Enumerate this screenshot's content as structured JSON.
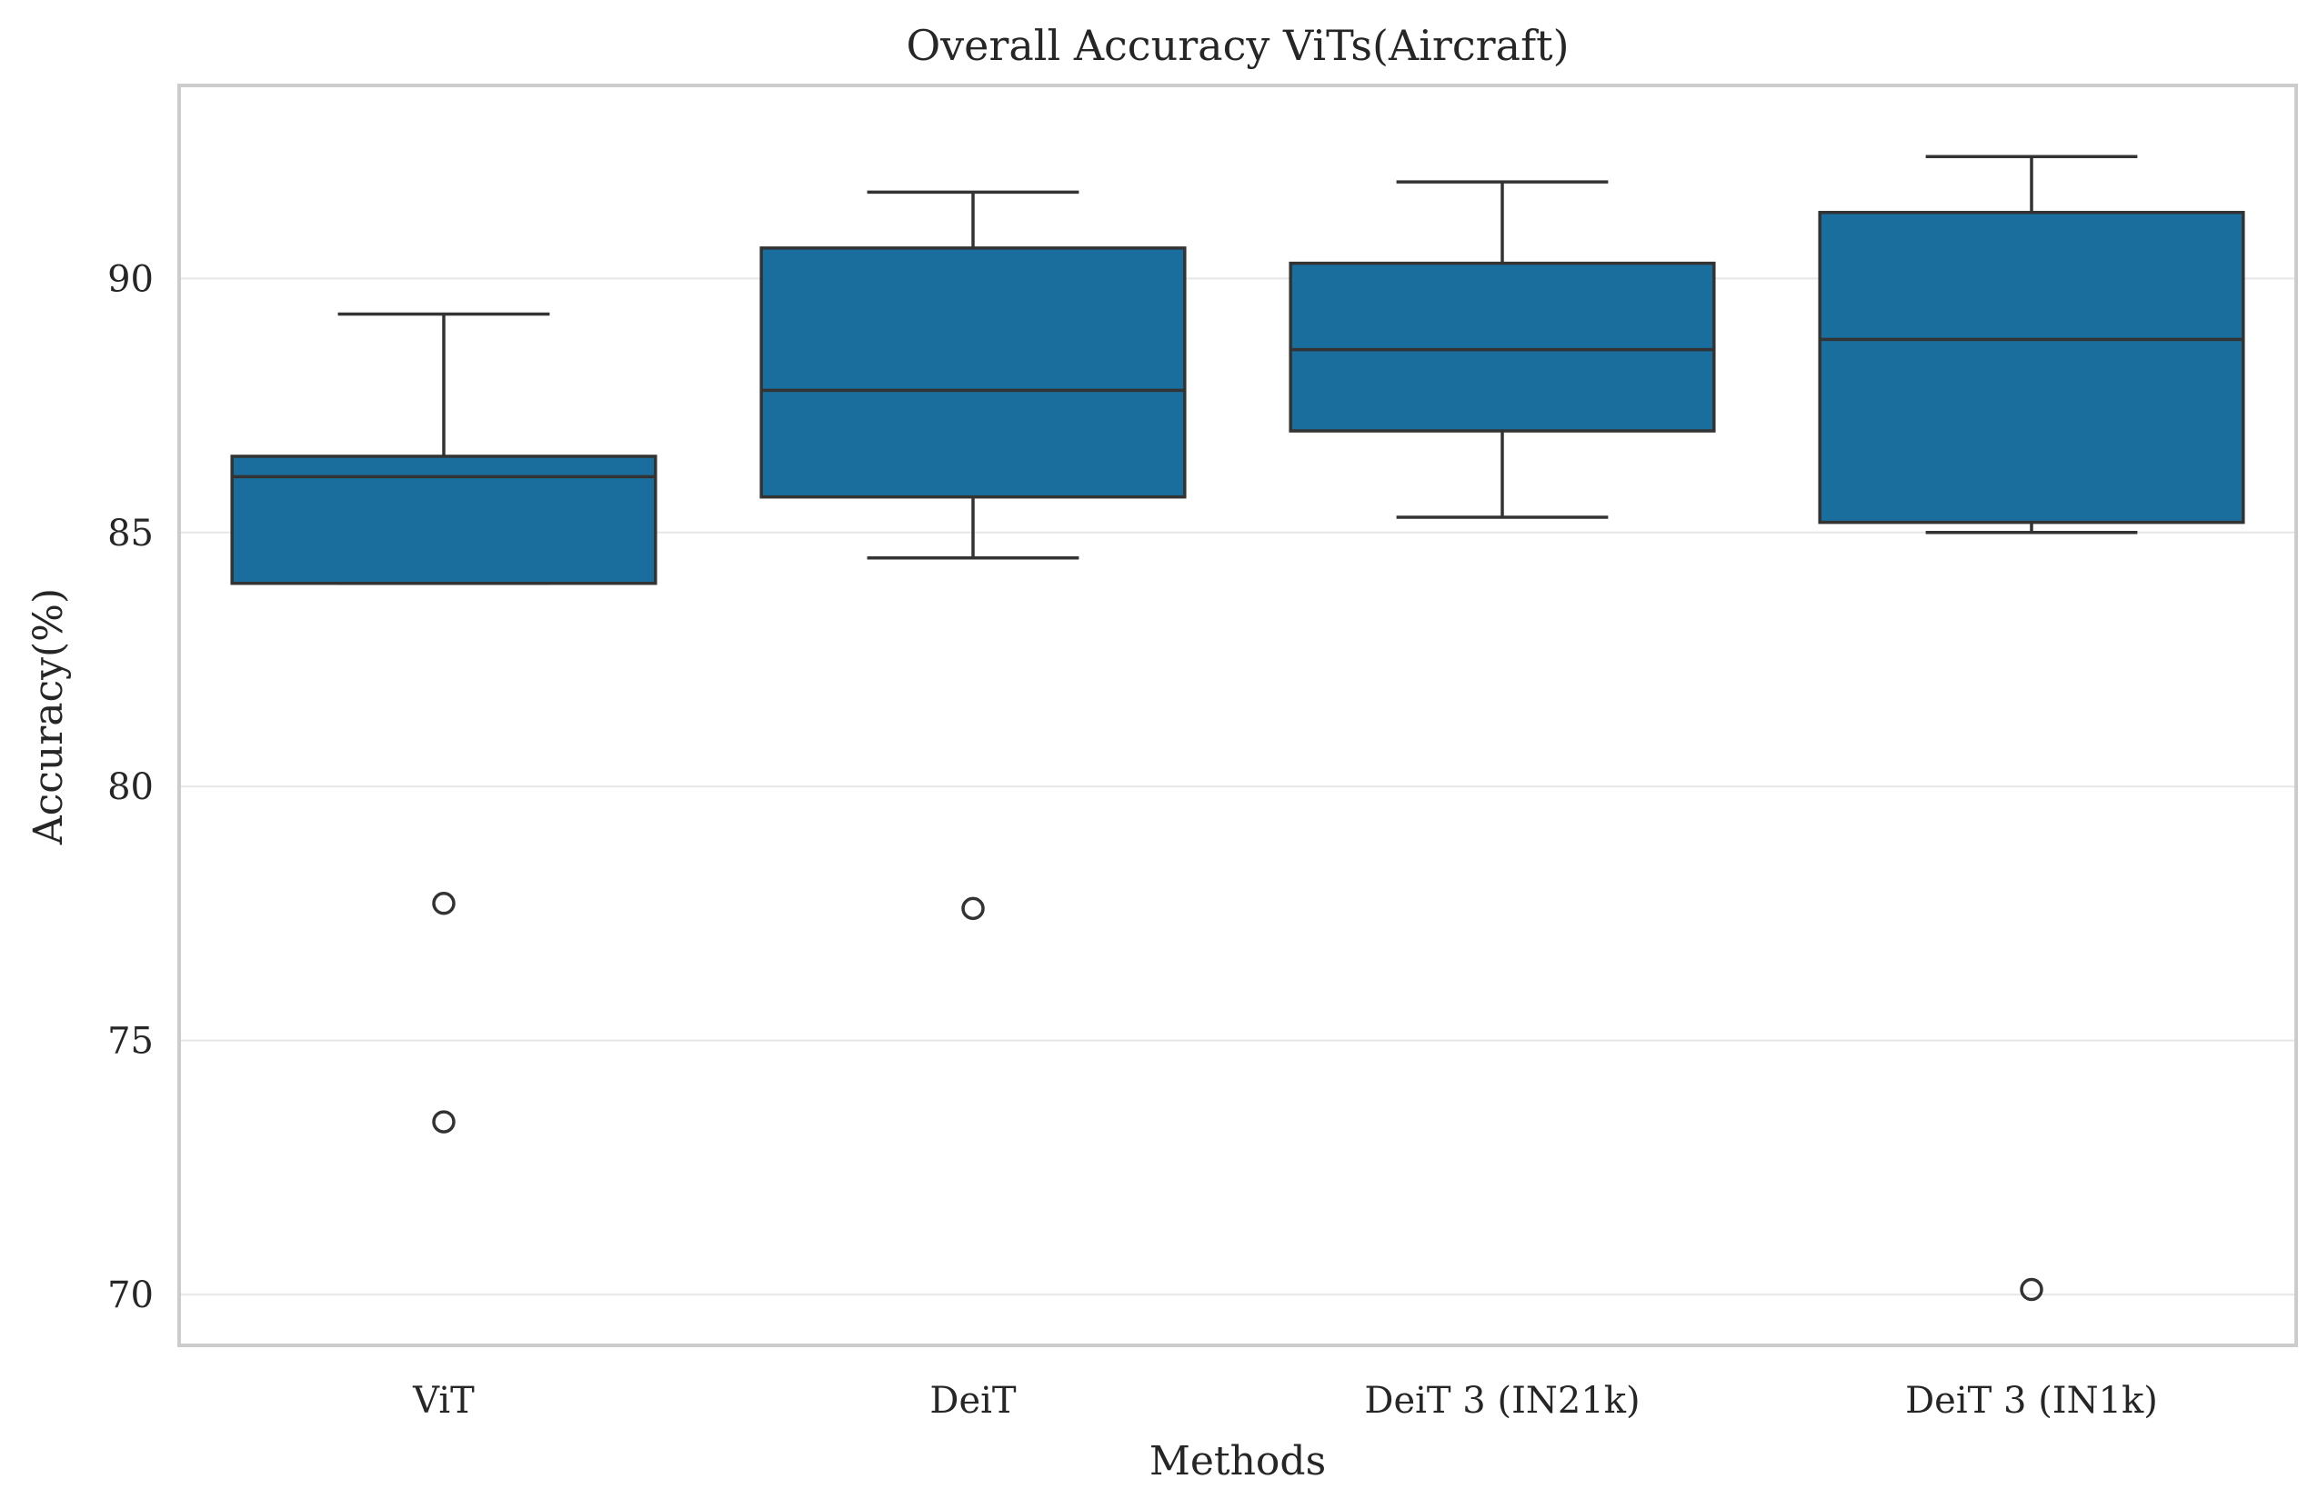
{
  "chart_data": {
    "type": "box",
    "title": "Overall Accuracy ViTs(Aircraft)",
    "xlabel": "Methods",
    "ylabel": "Accuracy(%)",
    "ylim": [
      69.0,
      93.8
    ],
    "yticks": [
      70,
      75,
      80,
      85,
      90
    ],
    "grid": true,
    "color": "#1a6e9e",
    "edge_color": "#333333",
    "categories": [
      "ViT",
      "DeiT",
      "DeiT 3 (IN21k)",
      "DeiT 3 (IN1k)"
    ],
    "boxes": [
      {
        "category": "ViT",
        "whisker_low": 84.0,
        "q1": 84.0,
        "median": 86.1,
        "q3": 86.5,
        "whisker_high": 89.3,
        "outliers": [
          77.7,
          73.4
        ]
      },
      {
        "category": "DeiT",
        "whisker_low": 84.5,
        "q1": 85.7,
        "median": 87.8,
        "q3": 90.6,
        "whisker_high": 91.7,
        "outliers": [
          77.6
        ]
      },
      {
        "category": "DeiT 3 (IN21k)",
        "whisker_low": 85.3,
        "q1": 87.0,
        "median": 88.6,
        "q3": 90.3,
        "whisker_high": 91.9,
        "outliers": []
      },
      {
        "category": "DeiT 3 (IN1k)",
        "whisker_low": 85.0,
        "q1": 85.2,
        "median": 88.8,
        "q3": 91.3,
        "whisker_high": 92.4,
        "outliers": [
          70.1
        ]
      }
    ]
  }
}
